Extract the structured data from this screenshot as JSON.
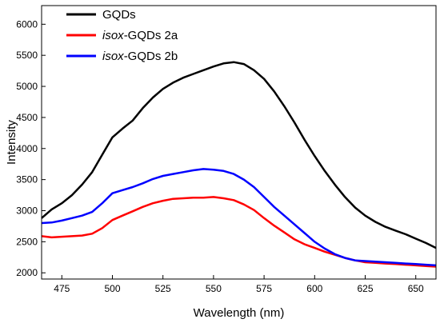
{
  "chart_data": {
    "type": "line",
    "title": "",
    "xlabel": "Wavelength (nm)",
    "ylabel": "Intensity",
    "xlim": [
      465,
      660
    ],
    "ylim": [
      1900,
      6300
    ],
    "xticks": [
      475,
      500,
      525,
      550,
      575,
      600,
      625,
      650
    ],
    "yticks": [
      2000,
      2500,
      3000,
      3500,
      4000,
      4500,
      5000,
      5500,
      6000
    ],
    "grid": false,
    "legend_position": "top-left",
    "series": [
      {
        "name_prefix": "",
        "name_suffix": "GQDs",
        "color": "#000000",
        "x": [
          465,
          470,
          475,
          480,
          485,
          490,
          495,
          500,
          505,
          510,
          515,
          520,
          525,
          530,
          535,
          540,
          545,
          550,
          555,
          560,
          565,
          570,
          575,
          580,
          585,
          590,
          595,
          600,
          605,
          610,
          615,
          620,
          625,
          630,
          635,
          640,
          645,
          650,
          655,
          660
        ],
        "y": [
          2880,
          3020,
          3120,
          3250,
          3420,
          3620,
          3900,
          4180,
          4320,
          4450,
          4650,
          4820,
          4960,
          5060,
          5140,
          5200,
          5260,
          5320,
          5370,
          5390,
          5360,
          5260,
          5120,
          4920,
          4680,
          4420,
          4140,
          3880,
          3640,
          3420,
          3220,
          3050,
          2920,
          2820,
          2740,
          2680,
          2620,
          2550,
          2480,
          2400
        ]
      },
      {
        "name_prefix": "isox",
        "name_suffix": "-GQDs 2a",
        "color": "#ff0000",
        "x": [
          465,
          470,
          475,
          480,
          485,
          490,
          495,
          500,
          505,
          510,
          515,
          520,
          525,
          530,
          535,
          540,
          545,
          550,
          555,
          560,
          565,
          570,
          575,
          580,
          585,
          590,
          595,
          600,
          605,
          610,
          615,
          620,
          625,
          630,
          635,
          640,
          645,
          650,
          655,
          660
        ],
        "y": [
          2590,
          2570,
          2580,
          2590,
          2600,
          2630,
          2720,
          2850,
          2920,
          2990,
          3060,
          3120,
          3160,
          3190,
          3200,
          3210,
          3210,
          3220,
          3200,
          3170,
          3100,
          3010,
          2880,
          2760,
          2650,
          2540,
          2460,
          2400,
          2340,
          2290,
          2240,
          2200,
          2170,
          2160,
          2150,
          2140,
          2130,
          2120,
          2110,
          2100
        ]
      },
      {
        "name_prefix": "isox",
        "name_suffix": "-GQDs 2b",
        "color": "#0000ff",
        "x": [
          465,
          470,
          475,
          480,
          485,
          490,
          495,
          500,
          505,
          510,
          515,
          520,
          525,
          530,
          535,
          540,
          545,
          550,
          555,
          560,
          565,
          570,
          575,
          580,
          585,
          590,
          595,
          600,
          605,
          610,
          615,
          620,
          625,
          630,
          635,
          640,
          645,
          650,
          655,
          660
        ],
        "y": [
          2800,
          2810,
          2840,
          2880,
          2920,
          2980,
          3120,
          3280,
          3330,
          3380,
          3440,
          3510,
          3560,
          3590,
          3620,
          3650,
          3670,
          3660,
          3640,
          3590,
          3500,
          3380,
          3220,
          3060,
          2920,
          2780,
          2640,
          2500,
          2390,
          2300,
          2240,
          2200,
          2190,
          2180,
          2170,
          2160,
          2150,
          2140,
          2130,
          2120
        ]
      }
    ]
  }
}
